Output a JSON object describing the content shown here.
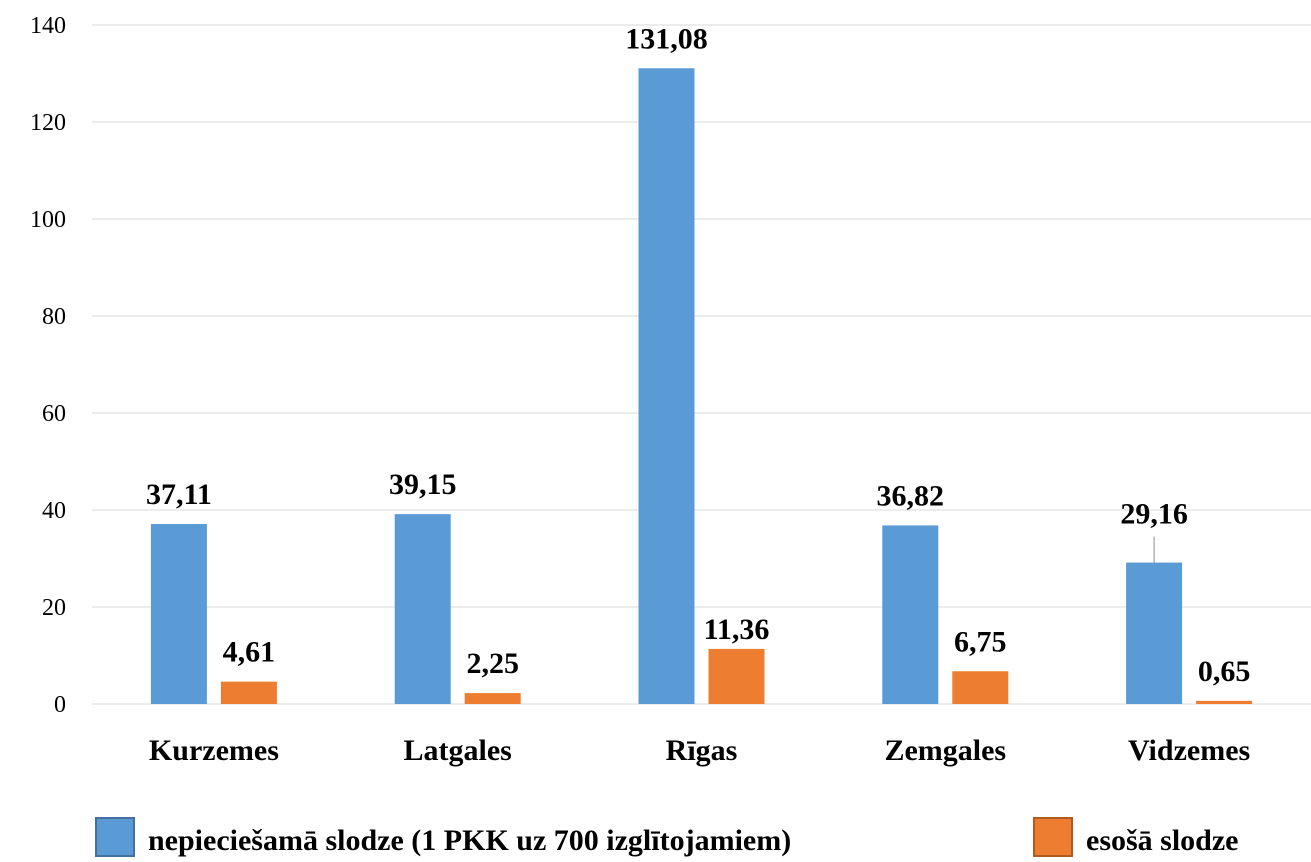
{
  "chart_data": {
    "type": "bar",
    "title": "",
    "xlabel": "",
    "ylabel": "",
    "ylim": [
      0,
      140
    ],
    "yticks": [
      0,
      20,
      40,
      60,
      80,
      100,
      120,
      140
    ],
    "grid": true,
    "legend_position": "bottom",
    "categories": [
      "Kurzemes",
      "Latgales",
      "Rīgas",
      "Zemgales",
      "Vidzemes"
    ],
    "series": [
      {
        "name": "nepieciešamā slodze (1 PKK uz 700 izglītojamiem)",
        "color": "#5b9bd5",
        "values": [
          37.11,
          39.15,
          131.08,
          36.82,
          29.16
        ],
        "labels": [
          "37,11",
          "39,15",
          "131,08",
          "36,82",
          "29,16"
        ]
      },
      {
        "name": "esošā slodze",
        "color": "#ed7d31",
        "values": [
          4.61,
          2.25,
          11.36,
          6.75,
          0.65
        ],
        "labels": [
          "4,61",
          "2,25",
          "11,36",
          "6,75",
          "0,65"
        ]
      }
    ]
  }
}
